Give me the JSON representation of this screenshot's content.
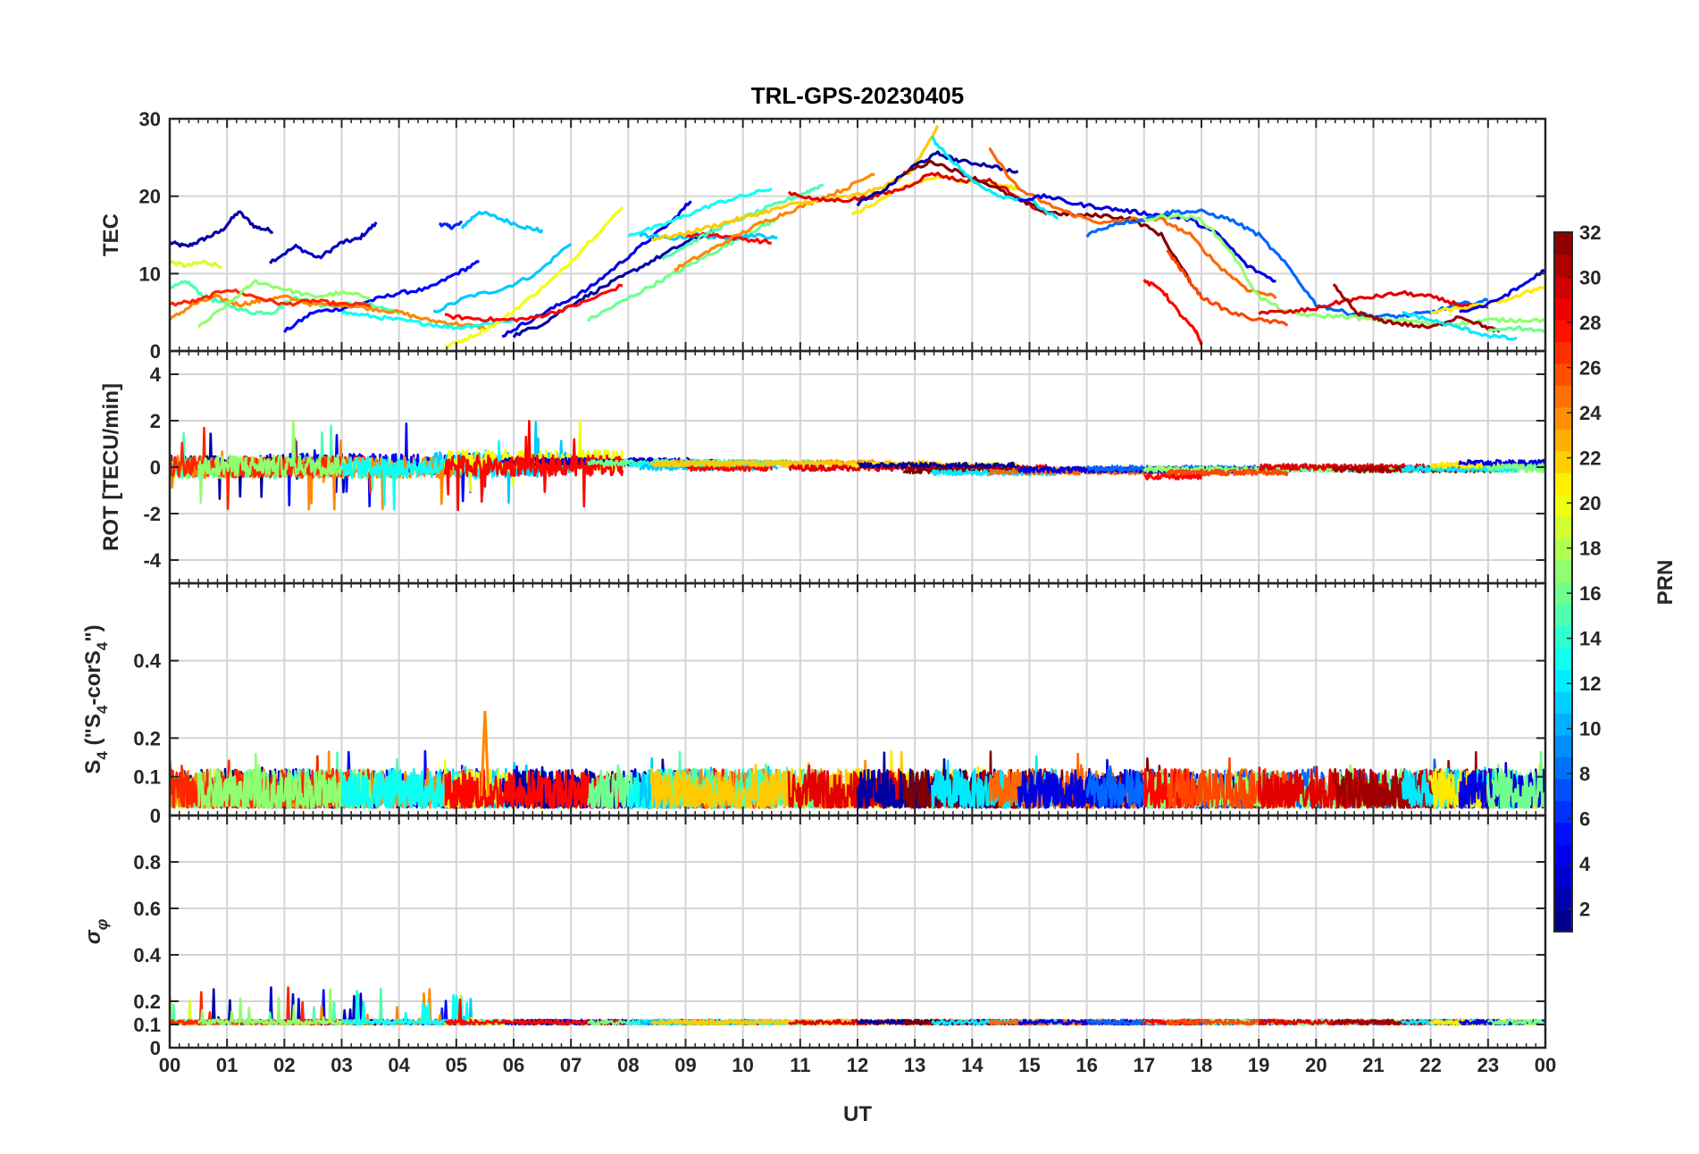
{
  "chart_data": {
    "type": "line",
    "title": "TRL-GPS-20230405",
    "xlabel": "UT",
    "x_ticks": [
      "00",
      "01",
      "02",
      "03",
      "04",
      "05",
      "06",
      "07",
      "08",
      "09",
      "10",
      "11",
      "12",
      "13",
      "14",
      "15",
      "16",
      "17",
      "18",
      "19",
      "20",
      "21",
      "22",
      "23",
      "00"
    ],
    "xlim": [
      0,
      24
    ],
    "grid": true,
    "colorbar": {
      "label": "PRN",
      "range": [
        1,
        32
      ],
      "ticks": [
        "2",
        "4",
        "6",
        "8",
        "10",
        "12",
        "14",
        "16",
        "18",
        "20",
        "22",
        "24",
        "26",
        "28",
        "30",
        "32"
      ],
      "colormap": "jet"
    },
    "panels": [
      {
        "ylabel": "TEC",
        "ylim": [
          0,
          30
        ],
        "y_ticks": [
          "0",
          "10",
          "20",
          "30"
        ],
        "series": [
          {
            "prn": 2,
            "x": [
              0.0,
              0.3,
              0.6,
              0.9,
              1.2,
              1.5,
              1.8
            ],
            "y": [
              14,
              13.5,
              14.5,
              15.5,
              18,
              16,
              15.5
            ]
          },
          {
            "prn": 3,
            "x": [
              1.75,
              2.2,
              2.6,
              3.0,
              3.3,
              3.6
            ],
            "y": [
              11.5,
              13.5,
              12,
              14,
              14.5,
              16.5
            ]
          },
          {
            "prn": 6,
            "x": [
              4.7,
              4.9,
              5.1
            ],
            "y": [
              16.5,
              16,
              16.5
            ]
          },
          {
            "prn": 11,
            "x": [
              5.1,
              5.4,
              5.8,
              6.2,
              6.5
            ],
            "y": [
              16,
              18,
              17,
              16,
              15.5
            ]
          },
          {
            "prn": 5,
            "x": [
              2.0,
              2.5,
              3.0,
              3.5,
              4.0,
              4.5,
              5.0,
              5.4
            ],
            "y": [
              2.5,
              5,
              5.5,
              6.5,
              7.5,
              8,
              10,
              11.5
            ]
          },
          {
            "prn": 11,
            "x": [
              4.6,
              5.2,
              5.8,
              6.4,
              7.0
            ],
            "y": [
              5,
              7,
              8,
              10,
              14
            ]
          },
          {
            "prn": 19,
            "x": [
              0.0,
              0.3,
              0.6,
              0.9
            ],
            "y": [
              11.5,
              11,
              11.5,
              11
            ]
          },
          {
            "prn": 15,
            "x": [
              0.0,
              0.3,
              0.6,
              1.0,
              1.4,
              1.8,
              2.2,
              2.6,
              3.0,
              3.5,
              4.0
            ],
            "y": [
              8,
              9,
              7,
              6,
              5,
              5,
              7,
              6,
              6,
              6,
              5
            ]
          },
          {
            "prn": 24,
            "x": [
              0.0,
              0.4,
              0.8,
              1.2,
              1.6,
              2.0,
              2.5,
              3.0,
              3.5,
              4.0,
              4.5,
              5.0,
              5.5
            ],
            "y": [
              4,
              6,
              7,
              6,
              6.5,
              7,
              6,
              6,
              5.5,
              5,
              4,
              3.5,
              3
            ]
          },
          {
            "prn": 27,
            "x": [
              0.0,
              0.5,
              1.0,
              1.5,
              2.0,
              2.5,
              3.0,
              3.5
            ],
            "y": [
              6,
              6.5,
              8,
              7,
              6,
              6.5,
              6,
              6
            ]
          },
          {
            "prn": 17,
            "x": [
              0.5,
              1.0,
              1.5,
              2.0,
              2.5,
              3.0,
              3.5
            ],
            "y": [
              3,
              6,
              9,
              8,
              7,
              7.5,
              7
            ]
          },
          {
            "prn": 13,
            "x": [
              3.0,
              3.5,
              4.0,
              4.5,
              5.0,
              5.5,
              6.0
            ],
            "y": [
              5,
              4.5,
              4,
              3.5,
              3,
              3.5,
              4
            ]
          },
          {
            "prn": 20,
            "x": [
              4.8,
              5.3,
              5.8,
              6.3,
              6.8,
              7.3,
              7.9
            ],
            "y": [
              0.5,
              2,
              4,
              7,
              10,
              14,
              18.5
            ]
          },
          {
            "prn": 4,
            "x": [
              5.8,
              6.3,
              6.8,
              7.3,
              7.8,
              8.3,
              8.8,
              9.1
            ],
            "y": [
              2,
              4,
              6,
              8,
              11,
              14,
              17,
              19.5
            ]
          },
          {
            "prn": 2,
            "x": [
              6.0,
              6.5,
              7.0,
              7.5,
              8.0,
              8.5,
              9.0,
              9.5
            ],
            "y": [
              2,
              3.5,
              6,
              8,
              10,
              12,
              14,
              15.5
            ]
          },
          {
            "prn": 28,
            "x": [
              4.8,
              5.3,
              5.8,
              6.3,
              6.8,
              7.3,
              7.9
            ],
            "y": [
              4.5,
              4.2,
              4,
              4.2,
              5.2,
              6.5,
              8.5
            ]
          },
          {
            "prn": 16,
            "x": [
              7.3,
              7.8,
              8.3,
              8.8,
              9.3,
              9.8,
              10.3,
              10.6
            ],
            "y": [
              4,
              6,
              8,
              10,
              12,
              14,
              16,
              17
            ]
          },
          {
            "prn": 13,
            "x": [
              8.0,
              8.5,
              9.0,
              9.5,
              10.0,
              10.5
            ],
            "y": [
              15,
              16,
              17.5,
              19,
              20,
              21
            ]
          },
          {
            "prn": 11,
            "x": [
              8.2,
              8.7,
              9.2,
              9.7,
              10.2,
              10.6
            ],
            "y": [
              15,
              14.5,
              15,
              14.5,
              15,
              14.5
            ]
          },
          {
            "prn": 28,
            "x": [
              9.0,
              9.5,
              10.0,
              10.5
            ],
            "y": [
              15,
              15,
              14.5,
              14
            ]
          },
          {
            "prn": 24,
            "x": [
              8.8,
              9.3,
              9.8,
              10.3,
              10.8,
              11.3,
              11.8,
              12.3
            ],
            "y": [
              10.5,
              12.5,
              14.5,
              16.5,
              18,
              19.5,
              21,
              23
            ]
          },
          {
            "prn": 15,
            "x": [
              8.6,
              9.1,
              9.6,
              10.1,
              10.6,
              11.1,
              11.4
            ],
            "y": [
              12,
              14,
              16,
              17.5,
              19,
              20.5,
              21.5
            ]
          },
          {
            "prn": 22,
            "x": [
              8.4,
              8.9,
              9.4,
              9.9,
              10.4,
              10.9,
              11.4,
              11.9,
              12.4,
              12.9,
              13.4
            ],
            "y": [
              14.5,
              15,
              16,
              17,
              18,
              19,
              19.5,
              20,
              21,
              23,
              29
            ]
          },
          {
            "prn": 21,
            "x": [
              11.9,
              12.4,
              12.9,
              13.4,
              13.9,
              14.4,
              14.8
            ],
            "y": [
              17.5,
              19.5,
              21.5,
              22.5,
              22,
              21.5,
              21
            ]
          },
          {
            "prn": 29,
            "x": [
              10.8,
              11.3,
              11.8,
              12.3,
              12.8,
              13.3,
              13.8,
              14.3,
              14.8,
              15.3
            ],
            "y": [
              20.5,
              19.5,
              19.5,
              20,
              21,
              23,
              22,
              22,
              20,
              17.5
            ]
          },
          {
            "prn": 2,
            "x": [
              12.0,
              12.5,
              13.0,
              13.4,
              13.8,
              14.3,
              14.8
            ],
            "y": [
              19,
              21,
              24,
              25.5,
              24.5,
              24,
              23
            ]
          },
          {
            "prn": 32,
            "x": [
              12.8,
              13.3,
              13.8,
              14.3,
              14.8,
              15.3,
              15.8,
              16.3,
              16.8,
              17.3,
              17.8
            ],
            "y": [
              23,
              24.5,
              23,
              21.5,
              19.5,
              18,
              17.5,
              17.5,
              17,
              15,
              9
            ]
          },
          {
            "prn": 12,
            "x": [
              13.3,
              13.6,
              14.0,
              14.5,
              15.0,
              15.5
            ],
            "y": [
              27.5,
              25,
              22,
              20,
              19.5,
              17
            ]
          },
          {
            "prn": 25,
            "x": [
              14.3,
              14.8,
              15.3,
              15.8,
              16.3,
              16.8,
              17.3,
              17.8,
              18.3,
              18.8,
              19.3
            ],
            "y": [
              26,
              21,
              19,
              17.5,
              16.5,
              17,
              17,
              15,
              11,
              8,
              7
            ]
          },
          {
            "prn": 4,
            "x": [
              14.8,
              15.3,
              15.8,
              16.3,
              16.8,
              17.3,
              17.8,
              18.3,
              18.8,
              19.3
            ],
            "y": [
              19.5,
              20,
              19,
              18.5,
              18,
              17.5,
              17,
              15,
              11,
              9
            ]
          },
          {
            "prn": 8,
            "x": [
              16.0,
              16.5,
              17.0,
              17.5,
              18.0,
              18.5,
              19.0,
              19.5,
              20.0,
              20.5,
              21.0,
              21.5,
              22.0,
              22.5,
              23.0
            ],
            "y": [
              15,
              16.5,
              17,
              18,
              18,
              17,
              15,
              11,
              6,
              5,
              4.5,
              4.5,
              5,
              6,
              6.5
            ]
          },
          {
            "prn": 17,
            "x": [
              17.0,
              17.5,
              18.0,
              18.5,
              19.0,
              19.5,
              20.0,
              20.5,
              21.0,
              21.5,
              22.0,
              22.5,
              23.0,
              23.5,
              24.0
            ],
            "y": [
              17,
              17.5,
              17,
              13,
              7,
              5,
              4.5,
              4.5,
              4,
              4,
              3.5,
              3.5,
              4,
              4,
              4
            ]
          },
          {
            "prn": 28,
            "x": [
              17.0,
              17.3,
              17.6,
              17.9,
              18.0
            ],
            "y": [
              9,
              8,
              5,
              2.5,
              1
            ]
          },
          {
            "prn": 26,
            "x": [
              17.4,
              17.7,
              18.0,
              18.5,
              19.0,
              19.5
            ],
            "y": [
              13,
              10,
              7,
              5,
              4,
              3.5
            ]
          },
          {
            "prn": 29,
            "x": [
              19.0,
              19.5,
              20.0,
              20.5,
              21.0,
              21.5,
              22.0,
              22.5,
              23.0
            ],
            "y": [
              5,
              5,
              5.5,
              6.5,
              7,
              7.5,
              7,
              6,
              5.5
            ]
          },
          {
            "prn": 31,
            "x": [
              20.3,
              20.7,
              21.1,
              21.5,
              22.0,
              22.5,
              23.0,
              23.2
            ],
            "y": [
              8.5,
              5,
              4,
              3.5,
              3,
              4.5,
              3,
              2.5
            ]
          },
          {
            "prn": 12,
            "x": [
              21.5,
              22.0,
              22.5,
              23.0,
              23.5
            ],
            "y": [
              5,
              4,
              3,
              2,
              1.5
            ]
          },
          {
            "prn": 21,
            "x": [
              22.0,
              22.5,
              23.0,
              23.5,
              24.0
            ],
            "y": [
              5,
              5.5,
              6,
              7,
              8.5
            ]
          },
          {
            "prn": 4,
            "x": [
              22.5,
              23.0,
              23.5,
              24.0
            ],
            "y": [
              5,
              6,
              8,
              10.5
            ]
          },
          {
            "prn": 16,
            "x": [
              23.0,
              23.5,
              24.0
            ],
            "y": [
              2.5,
              3,
              2.5
            ]
          }
        ]
      },
      {
        "ylabel": "ROT [TECU/min]",
        "ylim": [
          -5,
          5
        ],
        "y_ticks": [
          "-4",
          "-2",
          "0",
          "2",
          "4"
        ]
      },
      {
        "ylabel": "S4 (\"S4-corS4\")",
        "ylim": [
          0,
          0.6
        ],
        "y_ticks": [
          "0",
          "0.1",
          "0.2",
          "0.4"
        ]
      },
      {
        "ylabel": "σφ",
        "ylim": [
          0,
          1
        ],
        "y_ticks": [
          "0",
          "0.1",
          "0.2",
          "0.4",
          "0.6",
          "0.8"
        ]
      }
    ]
  }
}
